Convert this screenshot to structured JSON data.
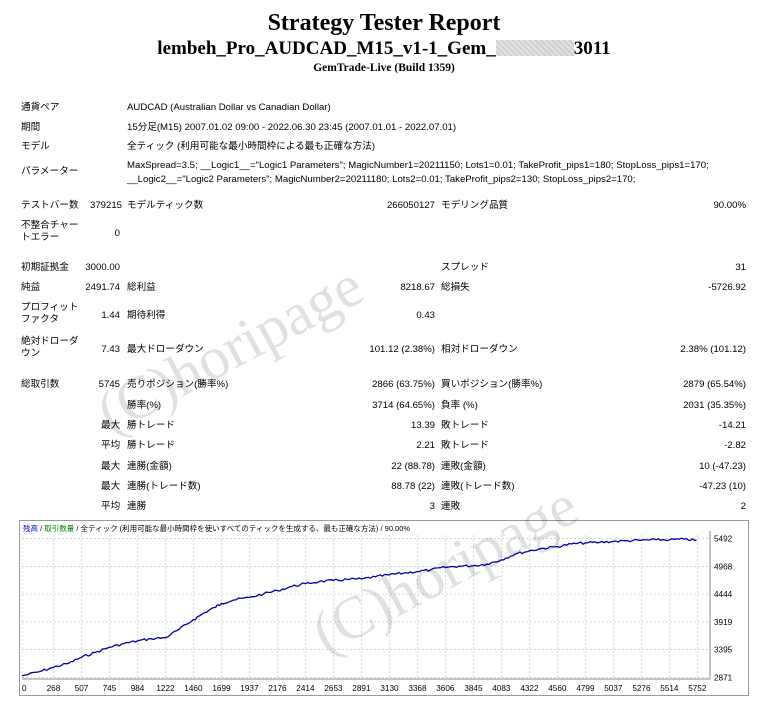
{
  "header": {
    "title": "Strategy Tester Report",
    "ea_name_prefix": "lembeh_Pro_AUDCAD_M15_v1-1_Gem_",
    "ea_name_suffix": "3011",
    "platform": "GemTrade-Live (Build 1359)"
  },
  "watermark": "(C)horipage",
  "info": {
    "pair_label": "通貨ペア",
    "pair_value": "AUDCAD (Australian Dollar vs Canadian Dollar)",
    "period_label": "期間",
    "period_value": "15分足(M15) 2007.01.02 09:00 - 2022.06.30 23:45 (2007.01.01 - 2022.07.01)",
    "model_label": "モデル",
    "model_value": "全ティック (利用可能な最小時間枠による最も正確な方法)",
    "params_label": "パラメーター",
    "params_line1": "MaxSpread=3.5; __Logic1__=\"Logic1 Parameters\"; MagicNumber1=20211150; Lots1=0.01; TakeProfit_pips1=180; StopLoss_pips1=170;",
    "params_line2": "__Logic2__=\"Logic2 Parameters\"; MagicNumber2=20211180; Lots2=0.01; TakeProfit_pips2=130; StopLoss_pips2=170;"
  },
  "stats": {
    "bars_label": "テストバー数",
    "bars_value": "379215",
    "ticks_label": "モデルティック数",
    "ticks_value": "266050127",
    "quality_label": "モデリング品質",
    "quality_value": "90.00%",
    "mismatch_label": "不整合チャートエラー",
    "mismatch_value": "0",
    "deposit_label": "初期証拠金",
    "deposit_value": "3000.00",
    "spread_label": "スプレッド",
    "spread_value": "31",
    "net_label": "純益",
    "net_value": "2491.74",
    "gross_profit_label": "総利益",
    "gross_profit_value": "8218.67",
    "gross_loss_label": "総損失",
    "gross_loss_value": "-5726.92",
    "pf_label": "プロフィットファクタ",
    "pf_value": "1.44",
    "expected_label": "期待利得",
    "expected_value": "0.43",
    "abs_dd_label": "絶対ドローダウン",
    "abs_dd_value": "7.43",
    "max_dd_label": "最大ドローダウン",
    "max_dd_value": "101.12 (2.38%)",
    "rel_dd_label": "相対ドローダウン",
    "rel_dd_value": "2.38% (101.12)",
    "trades_label": "総取引数",
    "trades_value": "5745",
    "short_label": "売りポジション(勝率%)",
    "short_value": "2866 (63.75%)",
    "long_label": "買いポジション(勝率%)",
    "long_value": "2879 (65.54%)",
    "win_pct_label": "勝率(%)",
    "win_pct_value": "3714 (64.65%)",
    "loss_pct_label": "負率 (%)",
    "loss_pct_value": "2031 (35.35%)",
    "max_label": "最大",
    "avg_label": "平均",
    "largest_win_label": "勝トレード",
    "largest_win_value": "13.39",
    "largest_loss_label": "敗トレード",
    "largest_loss_value": "-14.21",
    "avg_win_label": "勝トレード",
    "avg_win_value": "2.21",
    "avg_loss_label": "敗トレード",
    "avg_loss_value": "-2.82",
    "cons_wins_money_label": "連勝(金額)",
    "cons_wins_money_value": "22 (88.78)",
    "cons_losses_money_label": "連敗(金額)",
    "cons_losses_money_value": "10 (-47.23)",
    "cons_wins_trades_label": "連勝(トレード数)",
    "cons_wins_trades_value": "88.78 (22)",
    "cons_losses_trades_label": "連敗(トレード数)",
    "cons_losses_trades_value": "-47.23 (10)",
    "avg_cons_wins_label": "連勝",
    "avg_cons_wins_value": "3",
    "avg_cons_losses_label": "連敗",
    "avg_cons_losses_value": "2"
  },
  "chart_legend": {
    "balance": "残高",
    "sep1": " / ",
    "volume": "取引数量",
    "sep2": " / ",
    "model": "全ティック (利用可能な最小時間枠を使いすべてのティックを生成する、最も正確な方法)",
    "sep3": " / ",
    "quality": "90.00%"
  },
  "colors": {
    "balance_line": "#0000aa",
    "legend_balance": "#0000cc",
    "legend_volume": "#008000",
    "grid": "#c8c8c8"
  },
  "chart_data": {
    "type": "line",
    "x_ticks": [
      0,
      268,
      507,
      745,
      984,
      1222,
      1460,
      1699,
      1937,
      2176,
      2414,
      2653,
      2891,
      3130,
      3368,
      3606,
      3845,
      4083,
      4322,
      4560,
      4799,
      5037,
      5276,
      5514,
      5752
    ],
    "y_ticks": [
      2871,
      3395,
      3919,
      4444,
      4968,
      5492
    ],
    "xlim": [
      0,
      5860
    ],
    "ylim": [
      2840,
      5560
    ],
    "series": [
      {
        "x": [
          0,
          150,
          268,
          400,
          507,
          620,
          745,
          870,
          984,
          1100,
          1222,
          1340,
          1460,
          1560,
          1640,
          1699,
          1800,
          1937,
          2060,
          2176,
          2300,
          2414,
          2530,
          2653,
          2770,
          2891,
          3010,
          3130,
          3250,
          3368,
          3480,
          3606,
          3720,
          3845,
          3960,
          4083,
          4200,
          4322,
          4440,
          4560,
          4680,
          4799,
          4920,
          5037,
          5160,
          5276,
          5400,
          5514,
          5640,
          5745
        ],
        "y": [
          2900,
          2980,
          3060,
          3140,
          3250,
          3340,
          3440,
          3510,
          3560,
          3600,
          3620,
          3780,
          3960,
          4100,
          4190,
          4270,
          4330,
          4380,
          4450,
          4510,
          4590,
          4640,
          4680,
          4700,
          4720,
          4730,
          4770,
          4810,
          4840,
          4870,
          4900,
          4950,
          4970,
          4980,
          5010,
          5090,
          5200,
          5260,
          5310,
          5340,
          5390,
          5410,
          5420,
          5440,
          5450,
          5460,
          5470,
          5470,
          5480,
          5460
        ]
      }
    ]
  }
}
